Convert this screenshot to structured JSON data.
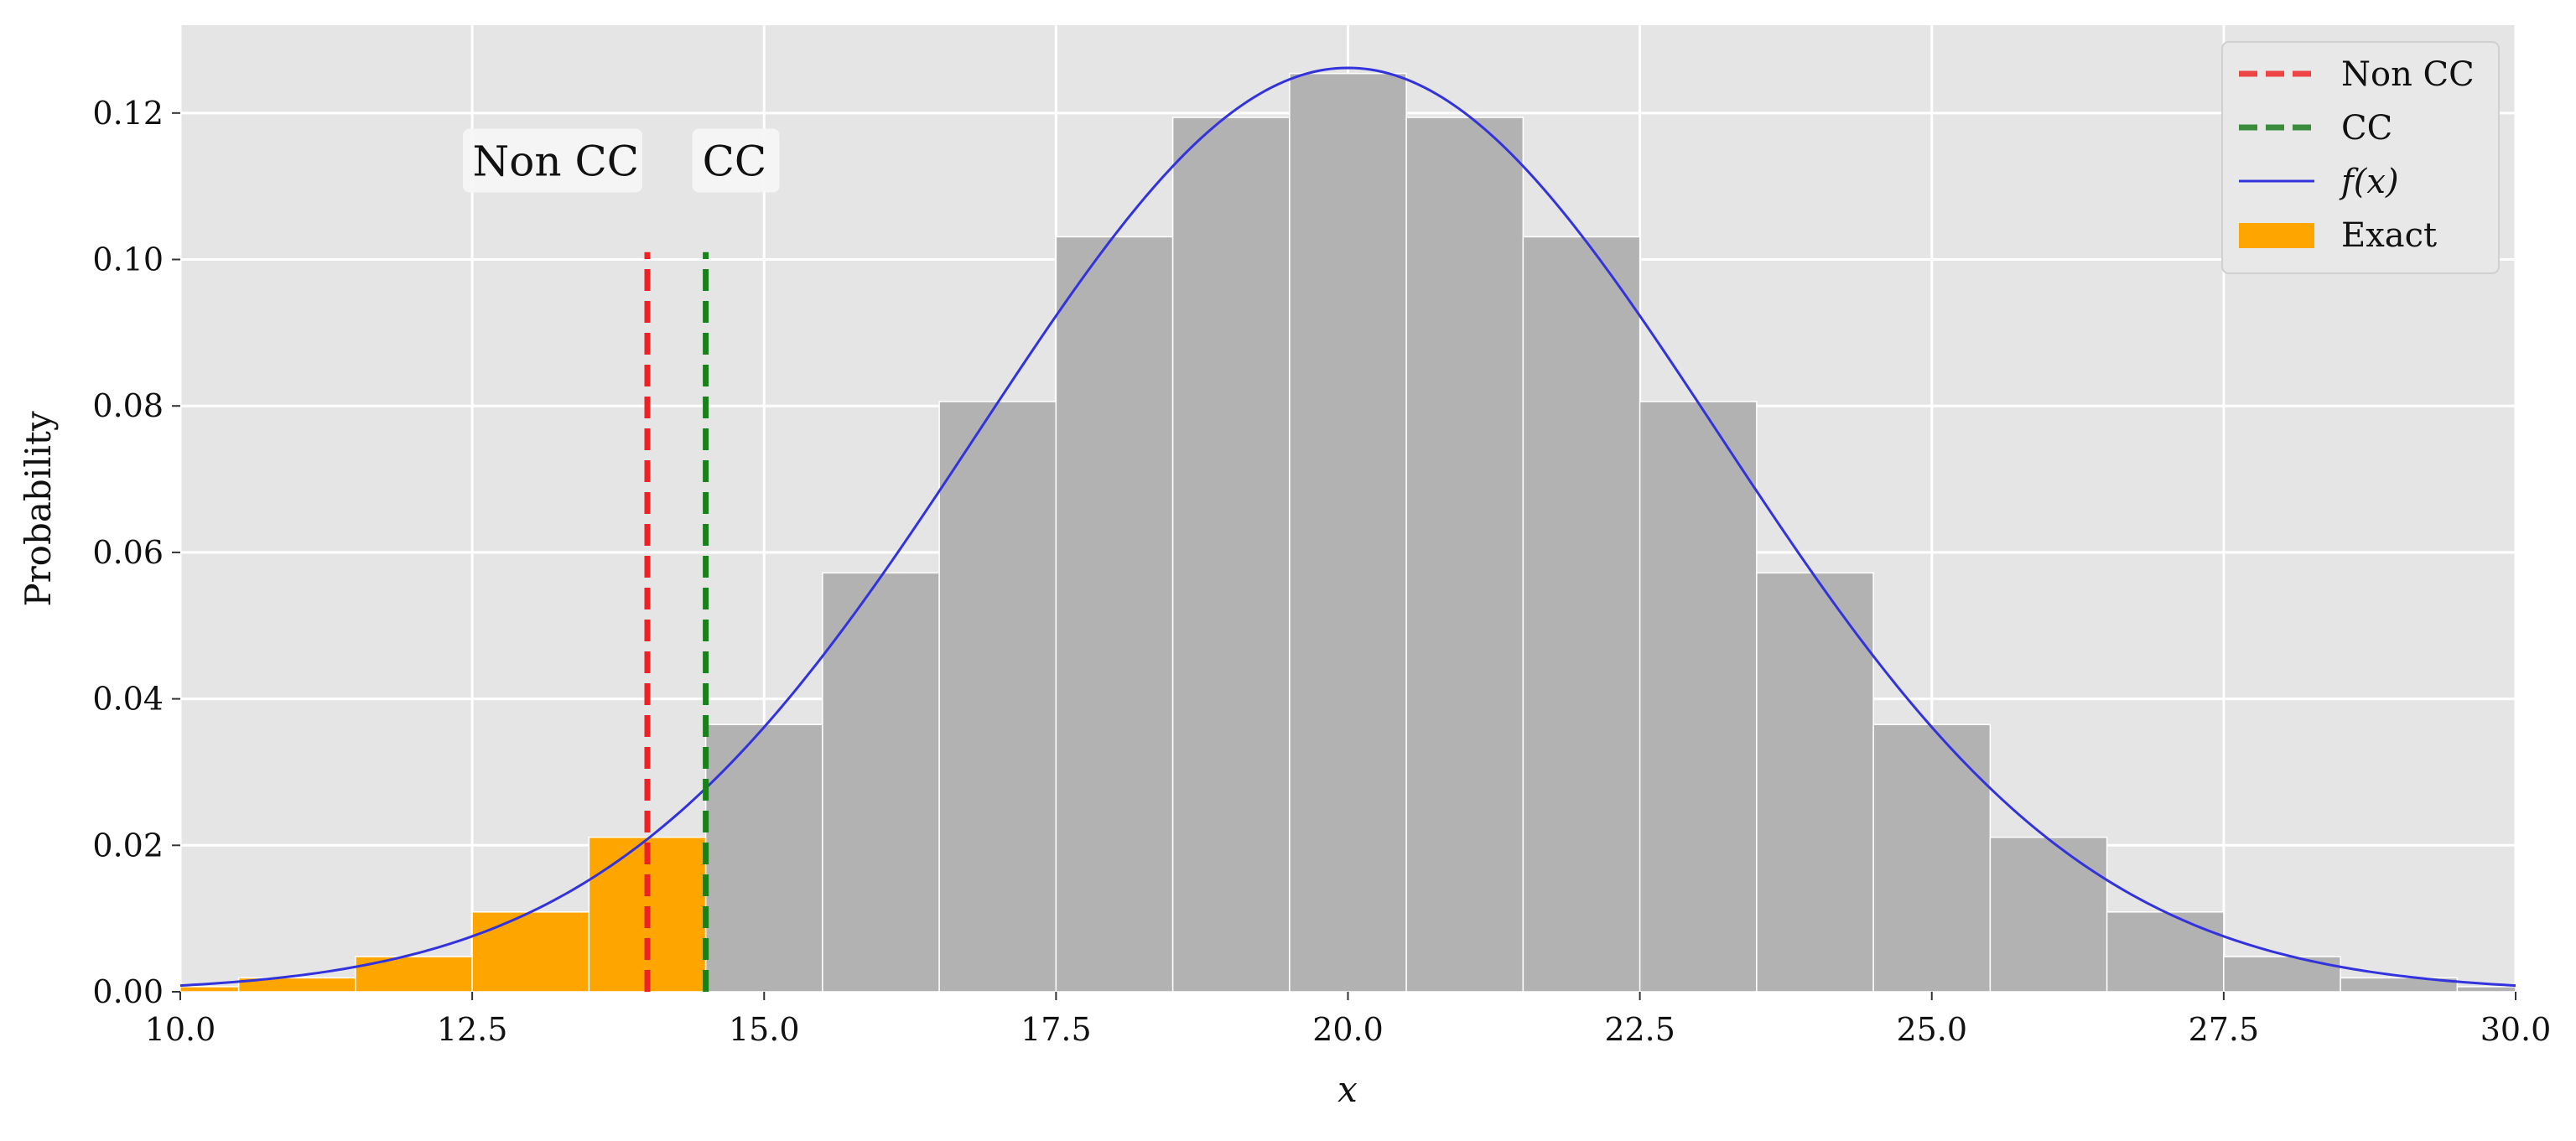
{
  "chart_data": {
    "type": "bar",
    "title": "",
    "xlabel": "x",
    "ylabel": "Probability",
    "xlim": [
      10.0,
      30.0
    ],
    "ylim": [
      0.0,
      0.132
    ],
    "grid": true,
    "background": "#e5e5e5",
    "legend_position": "top-right",
    "xticks": [
      "10.0",
      "12.5",
      "15.0",
      "17.5",
      "20.0",
      "22.5",
      "25.0",
      "27.5",
      "30.0"
    ],
    "yticks": [
      "0.00",
      "0.02",
      "0.04",
      "0.06",
      "0.08",
      "0.10",
      "0.12"
    ],
    "bars": {
      "x": [
        10,
        11,
        12,
        13,
        14,
        15,
        16,
        17,
        18,
        19,
        20,
        21,
        22,
        23,
        24,
        25,
        26,
        27,
        28,
        29,
        30
      ],
      "values": [
        0.0007,
        0.0019,
        0.0048,
        0.0109,
        0.0211,
        0.0365,
        0.0572,
        0.0806,
        0.1031,
        0.1194,
        0.1254,
        0.1194,
        0.1031,
        0.0806,
        0.0572,
        0.0365,
        0.0211,
        0.0109,
        0.0048,
        0.0019,
        0.0007
      ],
      "width": 1.0,
      "highlight_color": "#ffa500",
      "base_color": "#b2b2b2",
      "highlight_max_x": 14
    },
    "curve": {
      "name": "f(x)",
      "type": "normal-pdf",
      "mean": 20,
      "sd": 3.162,
      "color": "#3333dd"
    },
    "vlines": [
      {
        "name": "Non CC",
        "x": 14.0,
        "color": "#ee2222",
        "label": "Non CC"
      },
      {
        "name": "CC",
        "x": 14.5,
        "color": "#1a801a",
        "label": "CC"
      }
    ],
    "legend": [
      {
        "label": "Non CC",
        "kind": "dashed",
        "color": "#ee4444"
      },
      {
        "label": "CC",
        "kind": "dashed",
        "color": "#3b8c3b"
      },
      {
        "label": "f(x)",
        "kind": "line",
        "color": "#3333dd"
      },
      {
        "label": "Exact",
        "kind": "patch",
        "color": "#ffa500"
      }
    ]
  }
}
